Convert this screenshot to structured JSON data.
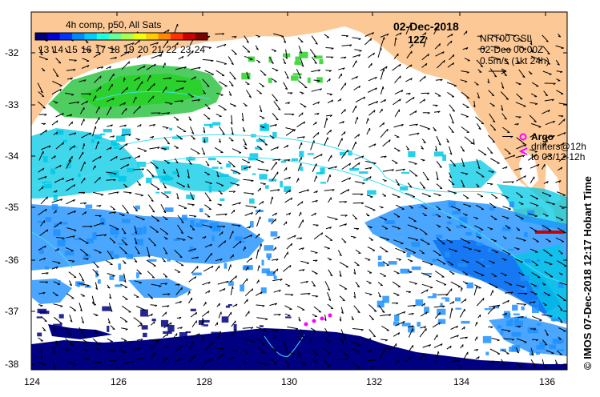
{
  "map": {
    "title_date": "02-Dec-2018",
    "title_time": "12Z",
    "colorbar_title": "4h comp, p50, All Sats",
    "colorbar_ticks": [
      "13",
      "14",
      "15",
      "16",
      "17",
      "18",
      "19",
      "20",
      "21",
      "22",
      "23",
      "24"
    ],
    "colorbar_colors": [
      "#00007f",
      "#0000d4",
      "#0033ff",
      "#0088ff",
      "#00ccff",
      "#22ffdd",
      "#66ff99",
      "#aaff55",
      "#eeff11",
      "#ffcc00",
      "#ff8800",
      "#ff3300",
      "#cc0000",
      "#800000"
    ],
    "current_source": "NRT00 GSL",
    "current_time": "02-Dec 00:00Z",
    "current_scale": "0.5m/s (1kt 24h)",
    "argo_label": "Argo",
    "drifters_label": "drifters@12h",
    "drifters_to": "to 03/12-12h",
    "credit": "© IMOS 07-Dec-2018 12:17 Hobart Time",
    "lat_labels": [
      "-32",
      "-33",
      "-34",
      "-35",
      "-36",
      "-37",
      "-38"
    ],
    "lon_labels": [
      "124",
      "126",
      "128",
      "130",
      "132",
      "134",
      "136"
    ],
    "colors": {
      "land": "#fcc996",
      "cold_water": "#000080",
      "blue_water": "#1e90ff",
      "cyan_water": "#00c8e6",
      "green_water": "#3cc850",
      "bright_green": "#28d228",
      "contour": "#40e0f0",
      "argo": "#ff00ff",
      "drifter": "#ff00ff",
      "warm_patch": "#cc0000"
    }
  }
}
